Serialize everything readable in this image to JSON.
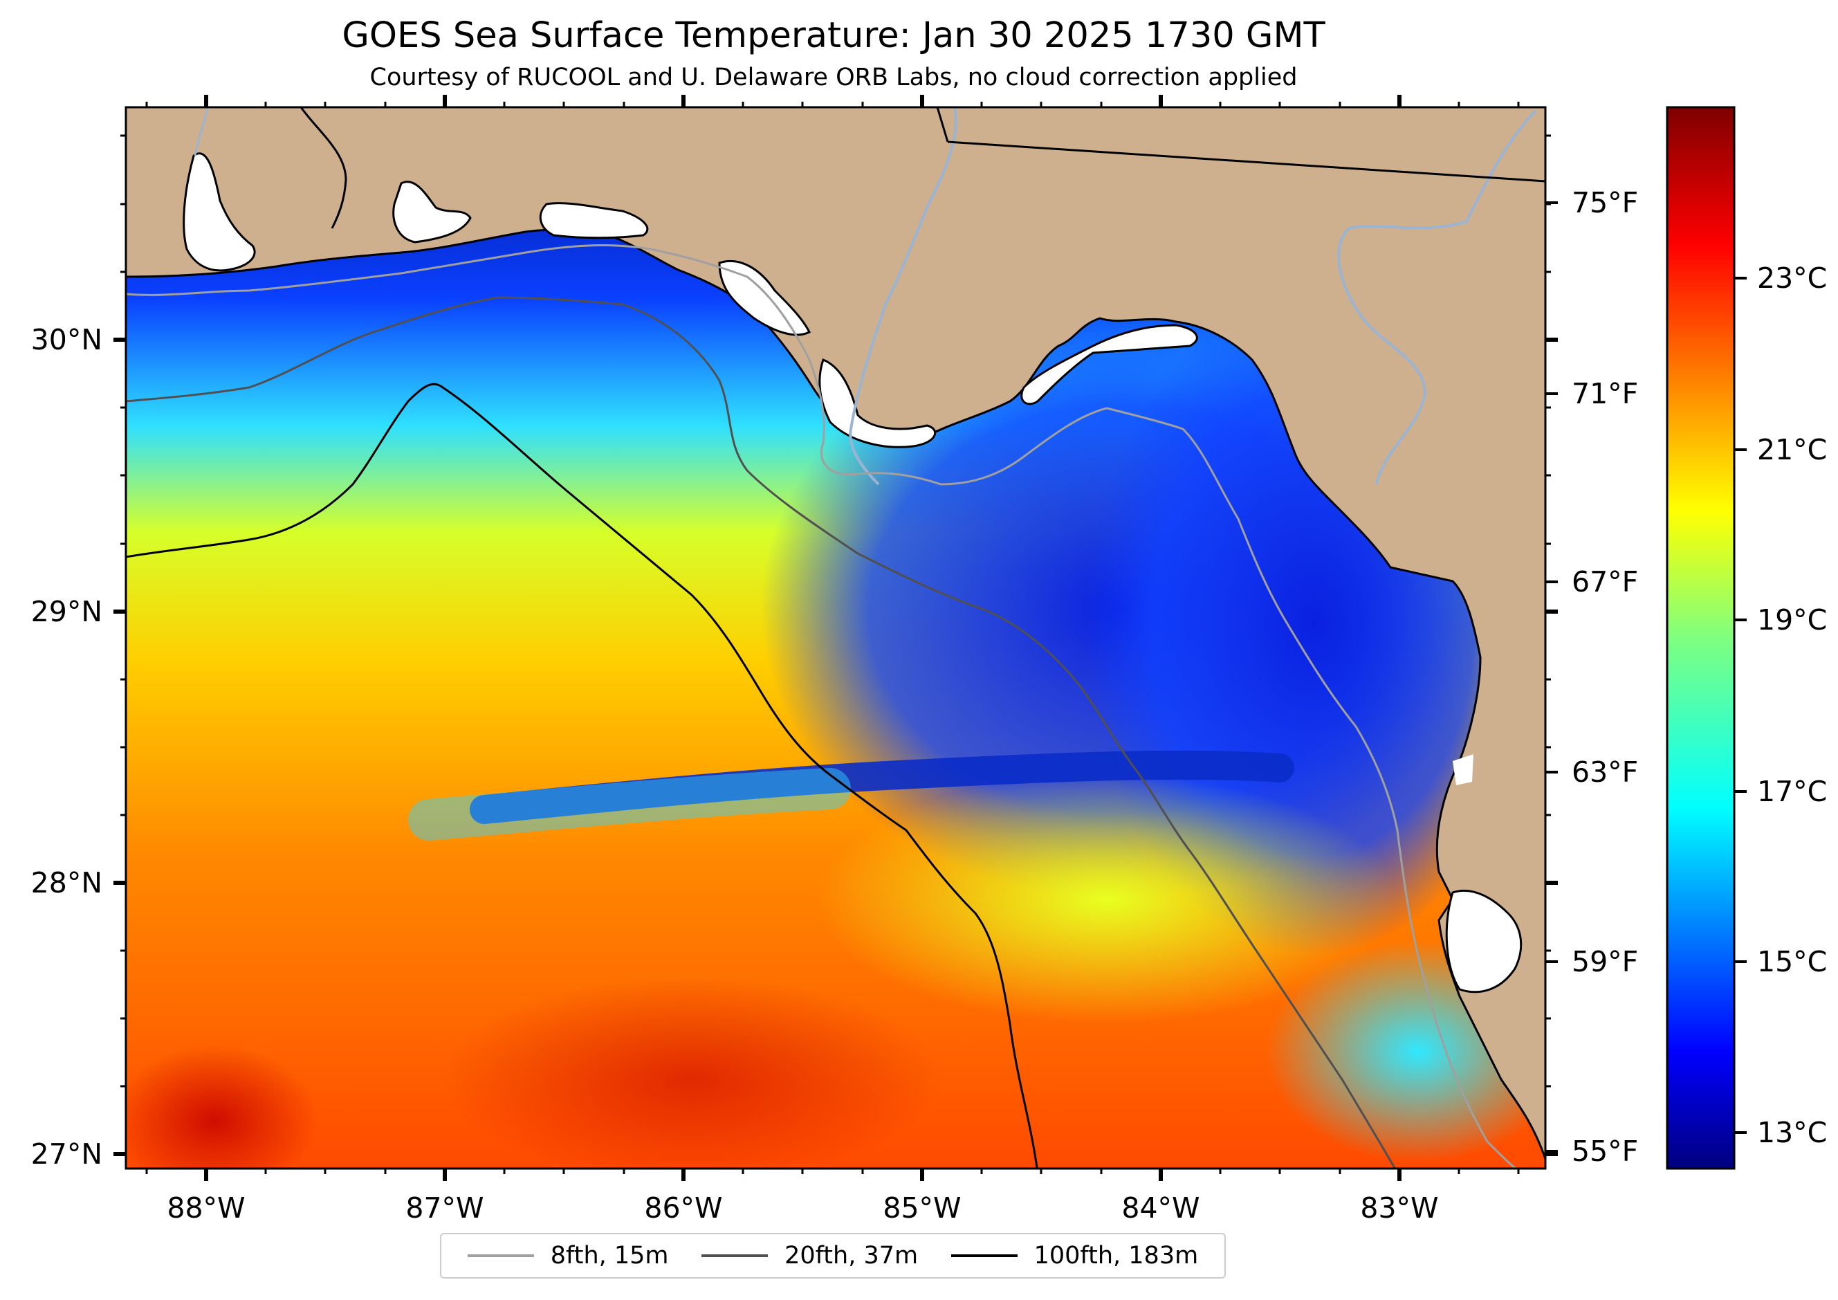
{
  "map": {
    "title": "GOES Sea Surface Temperature: Jan 30 2025 1730 GMT",
    "subtitle": "Courtesy of RUCOOL and U. Delaware ORB Labs, no cloud correction applied",
    "lon_ticks": [
      "88°W",
      "87°W",
      "86°W",
      "85°W",
      "84°W",
      "83°W"
    ],
    "lat_ticks": [
      "30°N",
      "29°N",
      "28°N",
      "27°N"
    ],
    "fahrenheit_ticks": [
      "75°F",
      "71°F",
      "67°F",
      "63°F",
      "59°F",
      "55°F"
    ],
    "colorbar": {
      "colormap": "jet",
      "ticks": [
        "23°C",
        "21°C",
        "19°C",
        "17°C",
        "15°C",
        "13°C"
      ]
    },
    "legend": [
      {
        "label": "8fth, 15m",
        "color": "#a0a0a0"
      },
      {
        "label": "20fth, 37m",
        "color": "#505050"
      },
      {
        "label": "100fth, 183m",
        "color": "#000000"
      }
    ],
    "colors": {
      "land": "#cfb08e",
      "cloud_gap": "#ffffff",
      "river": "#9ab4d2"
    }
  }
}
